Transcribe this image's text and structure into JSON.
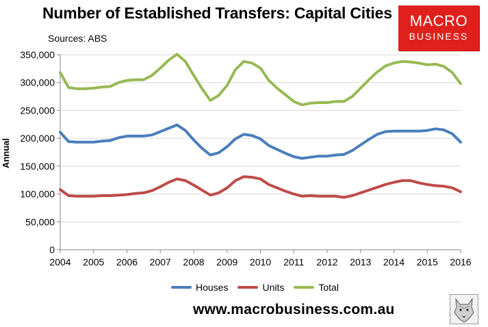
{
  "header": {
    "title": "Number of Established Transfers: Capital Cities",
    "source": "Sources: ABS"
  },
  "logo": {
    "line1": "MACRO",
    "line2": "BUSINESS",
    "color": "#e0201c"
  },
  "footer": {
    "url": "www.macrobusiness.com.au",
    "mascot_icon": "wolf-icon"
  },
  "chart_data": {
    "type": "line",
    "title": "Number of Established Transfers: Capital Cities",
    "ylabel": "Annual",
    "xlabel": "",
    "ylim": [
      0,
      350000
    ],
    "xlim": [
      2004,
      2016
    ],
    "yticks": [
      "0",
      "50,000",
      "100,000",
      "150,000",
      "200,000",
      "250,000",
      "300,000",
      "350,000"
    ],
    "xticks": [
      "2004",
      "2005",
      "2006",
      "2007",
      "2008",
      "2009",
      "2010",
      "2011",
      "2012",
      "2013",
      "2014",
      "2015",
      "2016"
    ],
    "grid": "horizontal",
    "legend_position": "bottom",
    "x": [
      2004.0,
      2004.25,
      2004.5,
      2004.75,
      2005.0,
      2005.25,
      2005.5,
      2005.75,
      2006.0,
      2006.25,
      2006.5,
      2006.75,
      2007.0,
      2007.25,
      2007.5,
      2007.75,
      2008.0,
      2008.25,
      2008.5,
      2008.75,
      2009.0,
      2009.25,
      2009.5,
      2009.75,
      2010.0,
      2010.25,
      2010.5,
      2010.75,
      2011.0,
      2011.25,
      2011.5,
      2011.75,
      2012.0,
      2012.25,
      2012.5,
      2012.75,
      2013.0,
      2013.25,
      2013.5,
      2013.75,
      2014.0,
      2014.25,
      2014.5,
      2014.75,
      2015.0,
      2015.25,
      2015.5,
      2015.75,
      2016.0
    ],
    "series": [
      {
        "name": "Houses",
        "color": "#4a7ebb",
        "values": [
          211000,
          194000,
          193000,
          193000,
          193000,
          195000,
          196000,
          201000,
          204000,
          204000,
          204000,
          206000,
          212000,
          218000,
          224000,
          214000,
          197000,
          182000,
          170000,
          174000,
          185000,
          199000,
          207000,
          205000,
          199000,
          187000,
          180000,
          173000,
          167000,
          164000,
          166000,
          168000,
          168000,
          170000,
          171000,
          178000,
          188000,
          198000,
          207000,
          212000,
          213000,
          213000,
          213000,
          213000,
          214000,
          217000,
          215000,
          208000,
          193000
        ]
      },
      {
        "name": "Units",
        "color": "#be4b48",
        "values": [
          108000,
          97000,
          96000,
          96000,
          96000,
          97000,
          97000,
          98000,
          99000,
          101000,
          102000,
          106000,
          113000,
          121000,
          127000,
          124000,
          116000,
          107000,
          98000,
          102000,
          111000,
          124000,
          131000,
          130000,
          127000,
          117000,
          111000,
          105000,
          100000,
          96000,
          97000,
          96000,
          96000,
          96000,
          94000,
          97000,
          102000,
          107000,
          112000,
          117000,
          121000,
          124000,
          124000,
          120000,
          117000,
          115000,
          114000,
          111000,
          104000
        ]
      },
      {
        "name": "Total",
        "color": "#98b954",
        "values": [
          318000,
          291000,
          289000,
          289000,
          290000,
          292000,
          293000,
          300000,
          304000,
          305000,
          305000,
          313000,
          326000,
          340000,
          351000,
          338000,
          313000,
          289000,
          268000,
          277000,
          295000,
          323000,
          338000,
          335000,
          326000,
          304000,
          290000,
          278000,
          266000,
          260000,
          263000,
          264000,
          264000,
          266000,
          266000,
          275000,
          290000,
          305000,
          319000,
          330000,
          335000,
          338000,
          337000,
          335000,
          332000,
          333000,
          329000,
          318000,
          298000
        ]
      }
    ]
  }
}
